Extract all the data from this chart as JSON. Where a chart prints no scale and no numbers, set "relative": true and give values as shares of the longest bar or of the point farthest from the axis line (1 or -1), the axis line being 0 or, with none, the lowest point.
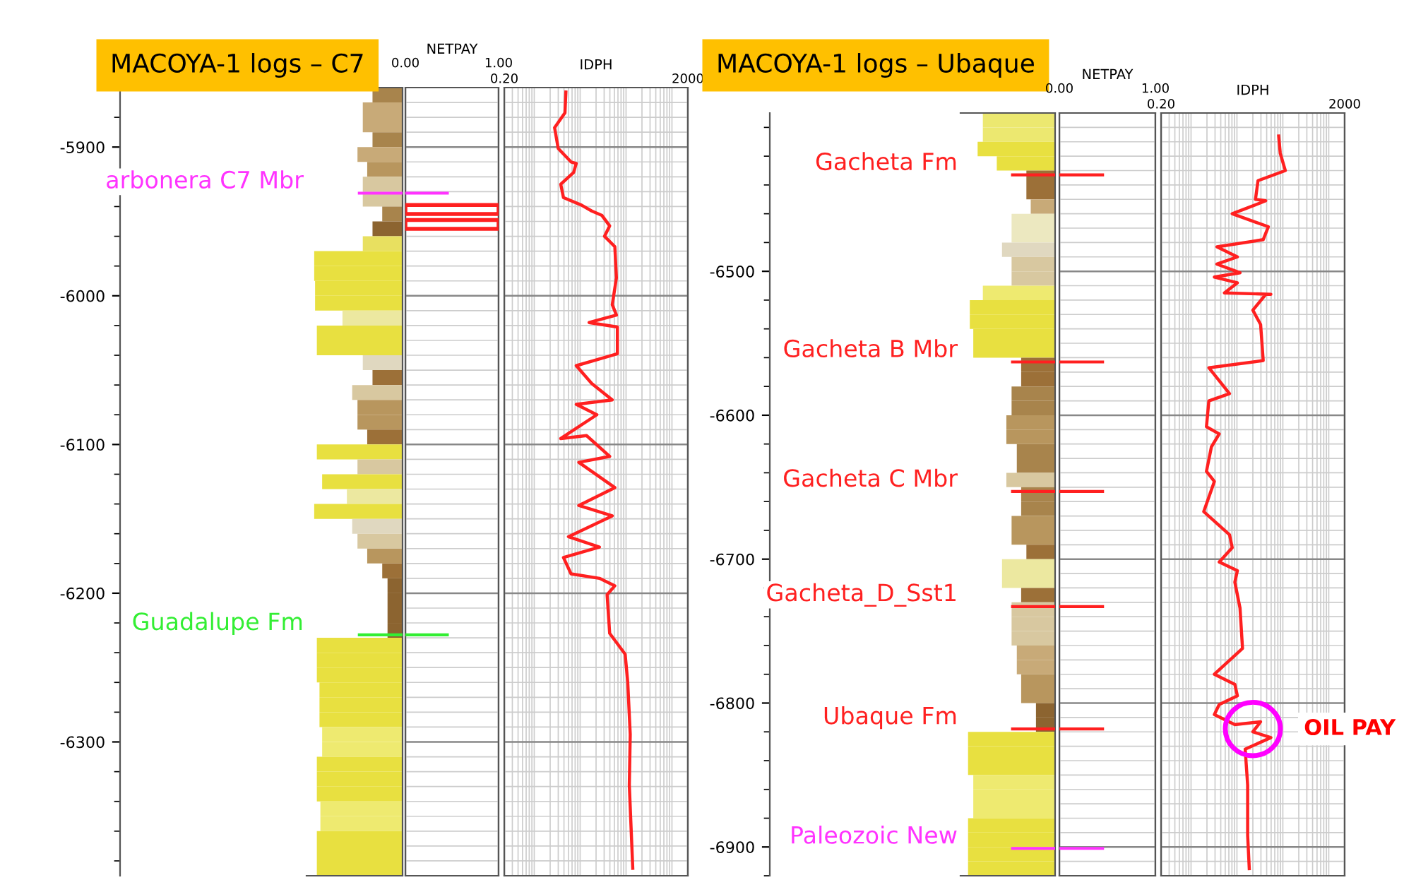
{
  "chart_data": [
    {
      "type": "bar",
      "orientation": "horizontal",
      "relative": true,
      "title": "MACOYA-1 logs – C7",
      "tick_labels": "y",
      "x": [
        -5865,
        -5875,
        -5885,
        -5895,
        -5905,
        -5915,
        -5925,
        -5935,
        -5945,
        -5955,
        -5965,
        -5975,
        -5985,
        -5995,
        -6005,
        -6015,
        -6025,
        -6035,
        -6045,
        -6055,
        -6065,
        -6075,
        -6085,
        -6095,
        -6105,
        -6115,
        -6125,
        -6135,
        -6145,
        -6155,
        -6165,
        -6175,
        -6185,
        -6195,
        -6205,
        -6215,
        -6225,
        -6235,
        -6245,
        -6255,
        -6265,
        -6275,
        -6285,
        -6295,
        -6305,
        -6315,
        -6325,
        -6335,
        -6345,
        -6355,
        -6365,
        -6375,
        -6385
      ],
      "values": [
        0.34,
        0.45,
        0.45,
        0.34,
        0.51,
        0.4,
        0.45,
        0.45,
        0.23,
        0.34,
        0.45,
        1,
        1,
        0.99,
        0.99,
        0.68,
        0.97,
        0.97,
        0.45,
        0.34,
        0.57,
        0.51,
        0.51,
        0.4,
        0.97,
        0.51,
        0.91,
        0.63,
        1,
        0.57,
        0.51,
        0.4,
        0.23,
        0.17,
        0.17,
        0.17,
        0.17,
        0.97,
        0.97,
        0.97,
        0.94,
        0.94,
        0.94,
        0.91,
        0.91,
        0.97,
        0.97,
        0.97,
        0.93,
        0.93,
        0.97,
        0.97,
        0.97
      ],
      "colors": [
        "#a8844c",
        "#c8aa78",
        "#c8aa78",
        "#a8844c",
        "#c8aa78",
        "#b8965e",
        "#d8c8a0",
        "#d8c8a0",
        "#a8844c",
        "#8c6430",
        "#e8e060",
        "#e8e040",
        "#e8e040",
        "#e8e040",
        "#e8e040",
        "#ece8a0",
        "#e8e040",
        "#e8e040",
        "#e0d8c0",
        "#9c7038",
        "#d8c8a0",
        "#b8965e",
        "#b8965e",
        "#9c7038",
        "#e8e040",
        "#d8c8a0",
        "#e8e040",
        "#ece8a0",
        "#e8e040",
        "#e0d8c0",
        "#d8c8a0",
        "#b8965e",
        "#9c7038",
        "#8c6430",
        "#8c6430",
        "#8c6430",
        "#8c6430",
        "#e8e040",
        "#e8e040",
        "#e8e040",
        "#e8e040",
        "#e8e040",
        "#e8e040",
        "#eeea70",
        "#eeea70",
        "#e8e040",
        "#e8e040",
        "#e8e040",
        "#eeea70",
        "#eeea70",
        "#e8e040",
        "#e8e040",
        "#e8e040"
      ],
      "ylim": [
        -6390,
        -5860
      ],
      "yticks": [
        -5900,
        -6000,
        -6100,
        -6200,
        -6300
      ],
      "ref_lines": [
        {
          "axis": "y",
          "value": -5931,
          "label": "arbonera C7 Mbr",
          "color": "#ff33ff"
        },
        {
          "axis": "y",
          "value": -6228,
          "label": "Guadalupe Fm",
          "color": "#33ee33"
        }
      ]
    },
    {
      "type": "bar",
      "orientation": "horizontal",
      "xlabel": "NETPAY",
      "tick_labels": "x",
      "grid": true,
      "x": [
        -5942,
        -5952
      ],
      "values": [
        1,
        1
      ],
      "color": "#ff2020",
      "xlim": [
        0,
        1
      ],
      "xticks": [
        {
          "value": 0,
          "label": "0.00"
        },
        {
          "value": 1,
          "label": "1.00"
        }
      ],
      "ylim": [
        -6390,
        -5860
      ],
      "yticks": [
        -5900,
        -6000,
        -6100,
        -6200,
        -6300
      ],
      "ref_lines": [
        {
          "axis": "y",
          "value": -5931,
          "color": "#ff33ff"
        },
        {
          "axis": "y",
          "value": -6228,
          "color": "#33ee33"
        }
      ]
    },
    {
      "type": "line",
      "orientation": "horizontal",
      "xlabel": "IDPH",
      "log": "x",
      "tick_labels": "x",
      "grid": true,
      "line_style": "solid",
      "color": "#ff2020",
      "values": [
        4.4,
        4.2,
        2.5,
        3.0,
        5.7,
        7.4,
        6.5,
        3.4,
        3.9,
        9.6,
        16.1,
        26.9,
        39.6,
        30.6,
        51.3,
        55.5,
        45.1,
        55.5,
        14.1,
        58.3,
        58.3,
        7.4,
        16.1,
        45.1,
        7.4,
        20.8,
        3.4,
        12.4,
        39.6,
        8.4,
        51.3,
        8.4,
        45.1,
        5.0,
        23.7,
        3.9,
        5.7,
        23.7,
        51.3,
        34.8,
        39.6,
        86,
        98,
        111,
        106,
        126
      ],
      "x": [
        -5863,
        -5877,
        -5887,
        -5901,
        -5910,
        -5911,
        -5917,
        -5925,
        -5934,
        -5939,
        -5943,
        -5946,
        -5953,
        -5960,
        -5967,
        -5988,
        -6006,
        -6013,
        -6018,
        -6021,
        -6039,
        -6047,
        -6059,
        -6070,
        -6073,
        -6080,
        -6096,
        -6094,
        -6108,
        -6112,
        -6129,
        -6141,
        -6148,
        -6162,
        -6169,
        -6176,
        -6187,
        -6190,
        -6195,
        -6201,
        -6227,
        -6241,
        -6260,
        -6295,
        -6329,
        -6385
      ],
      "xlim": [
        0.2,
        2000
      ],
      "xticks": [
        {
          "value": 0.2,
          "label": "0.20"
        },
        2000
      ],
      "ylim": [
        -6390,
        -5860
      ],
      "yticks": [
        -5900,
        -6000,
        -6100,
        -6200,
        -6300
      ]
    },
    {
      "type": "bar",
      "orientation": "horizontal",
      "relative": true,
      "title": "MACOYA-1 logs – Ubaque",
      "tick_labels": "y",
      "x": [
        -6395,
        -6405,
        -6415,
        -6425,
        -6435,
        -6445,
        -6455,
        -6465,
        -6475,
        -6485,
        -6495,
        -6505,
        -6515,
        -6525,
        -6535,
        -6545,
        -6555,
        -6565,
        -6575,
        -6585,
        -6595,
        -6605,
        -6615,
        -6625,
        -6635,
        -6645,
        -6655,
        -6665,
        -6675,
        -6685,
        -6695,
        -6705,
        -6715,
        -6725,
        -6735,
        -6745,
        -6755,
        -6765,
        -6775,
        -6785,
        -6795,
        -6805,
        -6815,
        -6825,
        -6835,
        -6845,
        -6855,
        -6865,
        -6875,
        -6885,
        -6895,
        -6905,
        -6915
      ],
      "values": [
        0.83,
        0.83,
        0.89,
        0.67,
        0.33,
        0.33,
        0.28,
        0.5,
        0.5,
        0.61,
        0.5,
        0.5,
        0.83,
        0.98,
        0.98,
        0.94,
        0.94,
        0.39,
        0.39,
        0.5,
        0.5,
        0.56,
        0.56,
        0.44,
        0.44,
        0.56,
        0.39,
        0.39,
        0.5,
        0.5,
        0.33,
        0.61,
        0.61,
        0.39,
        0.5,
        0.5,
        0.5,
        0.44,
        0.44,
        0.39,
        0.39,
        0.22,
        0.22,
        1,
        1,
        1,
        0.94,
        0.94,
        0.94,
        1,
        1,
        1,
        1
      ],
      "colors": [
        "#ece870",
        "#ece870",
        "#e8e040",
        "#e8e040",
        "#9c7038",
        "#9c7038",
        "#c8aa78",
        "#ece8c0",
        "#ece8c0",
        "#e0d8c0",
        "#d8c8a0",
        "#d8c8a0",
        "#eeea70",
        "#e8e040",
        "#e8e040",
        "#e8e040",
        "#e8e040",
        "#9c7038",
        "#9c7038",
        "#a8844c",
        "#a8844c",
        "#b8965e",
        "#b8965e",
        "#a8844c",
        "#a8844c",
        "#d8c8a0",
        "#a8844c",
        "#a8844c",
        "#b8965e",
        "#b8965e",
        "#9c7038",
        "#ece8a0",
        "#ece8a0",
        "#9c7038",
        "#d8c8a0",
        "#d8c8a0",
        "#d8c8a0",
        "#c8aa78",
        "#c8aa78",
        "#b8965e",
        "#b8965e",
        "#8c6430",
        "#8c6430",
        "#e8e040",
        "#e8e040",
        "#e8e040",
        "#eeea70",
        "#eeea70",
        "#eeea70",
        "#e8e040",
        "#e8e040",
        "#e8e040",
        "#e8e040"
      ],
      "ylim": [
        -6920,
        -6390
      ],
      "yticks": [
        -6500,
        -6600,
        -6700,
        -6800,
        -6900
      ],
      "ref_lines": [
        {
          "axis": "y",
          "value": -6433,
          "label": "Gacheta Fm",
          "color": "#ff2020"
        },
        {
          "axis": "y",
          "value": -6563,
          "label": "Gacheta B Mbr",
          "color": "#ff2020"
        },
        {
          "axis": "y",
          "value": -6653,
          "label": "Gacheta C Mbr",
          "color": "#ff2020"
        },
        {
          "axis": "y",
          "value": -6733,
          "label": "Gacheta_D_Sst1",
          "color": "#ff2020"
        },
        {
          "axis": "y",
          "value": -6818,
          "label": "Ubaque Fm",
          "color": "#ff2020"
        },
        {
          "axis": "y",
          "value": -6901,
          "label": "Paleozoic New",
          "color": "#ff33ff"
        }
      ]
    },
    {
      "type": "bar",
      "orientation": "horizontal",
      "xlabel": "NETPAY",
      "tick_labels": "x",
      "grid": true,
      "color": "#ff2020",
      "xlim": [
        0,
        1
      ],
      "xticks": [
        {
          "value": 0,
          "label": "0.00"
        },
        {
          "value": 1,
          "label": "1.00"
        }
      ],
      "ylim": [
        -6920,
        -6390
      ],
      "yticks": [
        -6500,
        -6600,
        -6700,
        -6800,
        -6900
      ],
      "ref_lines": [
        {
          "axis": "y",
          "value": -6433,
          "color": "#ff2020"
        },
        {
          "axis": "y",
          "value": -6563,
          "color": "#ff2020"
        },
        {
          "axis": "y",
          "value": -6653,
          "color": "#ff2020"
        },
        {
          "axis": "y",
          "value": -6733,
          "color": "#ff2020"
        },
        {
          "axis": "y",
          "value": -6818,
          "color": "#ff2020"
        },
        {
          "axis": "y",
          "value": -6901,
          "color": "#ff33ff"
        }
      ]
    },
    {
      "type": "line",
      "orientation": "horizontal",
      "xlabel": "IDPH",
      "log": "x",
      "tick_labels": "x",
      "grid": true,
      "line_style": "solid",
      "color": "#ff2020",
      "values": [
        73,
        79,
        102,
        25.9,
        22.8,
        38.2,
        7.1,
        43.5,
        33.6,
        3.3,
        9.2,
        3.3,
        10.5,
        2.9,
        9.2,
        4.8,
        49.4,
        38.2,
        20,
        29.5,
        33.6,
        2.2,
        6.2,
        2.2,
        1.95,
        3.7,
        2.5,
        1.95,
        2.9,
        1.7,
        6.2,
        7.1,
        3.7,
        9.2,
        8.1,
        10.5,
        11.9,
        2.9,
        8.1,
        9.2,
        3.7,
        2.9,
        8.1,
        29.5,
        20,
        49.4,
        13.6,
        15.4,
        15.4,
        16.7
      ],
      "x": [
        -6406,
        -6418,
        -6430,
        -6437,
        -6450,
        -6451,
        -6460,
        -6469,
        -6478,
        -6483,
        -6490,
        -6495,
        -6501,
        -6504,
        -6508,
        -6515,
        -6516,
        -6516,
        -6527,
        -6537,
        -6562,
        -6567,
        -6585,
        -6590,
        -6608,
        -6613,
        -6622,
        -6639,
        -6646,
        -6667,
        -6683,
        -6692,
        -6702,
        -6708,
        -6716,
        -6734,
        -6762,
        -6780,
        -6787,
        -6795,
        -6801,
        -6808,
        -6815,
        -6813,
        -6820,
        -6824,
        -6832,
        -6857,
        -6892,
        -6915
      ],
      "xlim": [
        0.2,
        2000
      ],
      "xticks": [
        {
          "value": 0.2,
          "label": "0.20"
        },
        2000
      ],
      "ylim": [
        -6920,
        -6390
      ],
      "yticks": [
        -6500,
        -6600,
        -6700,
        -6800,
        -6900
      ],
      "annotations": [
        {
          "text": "OIL PAY",
          "x": 20,
          "y": -6818
        }
      ]
    }
  ]
}
